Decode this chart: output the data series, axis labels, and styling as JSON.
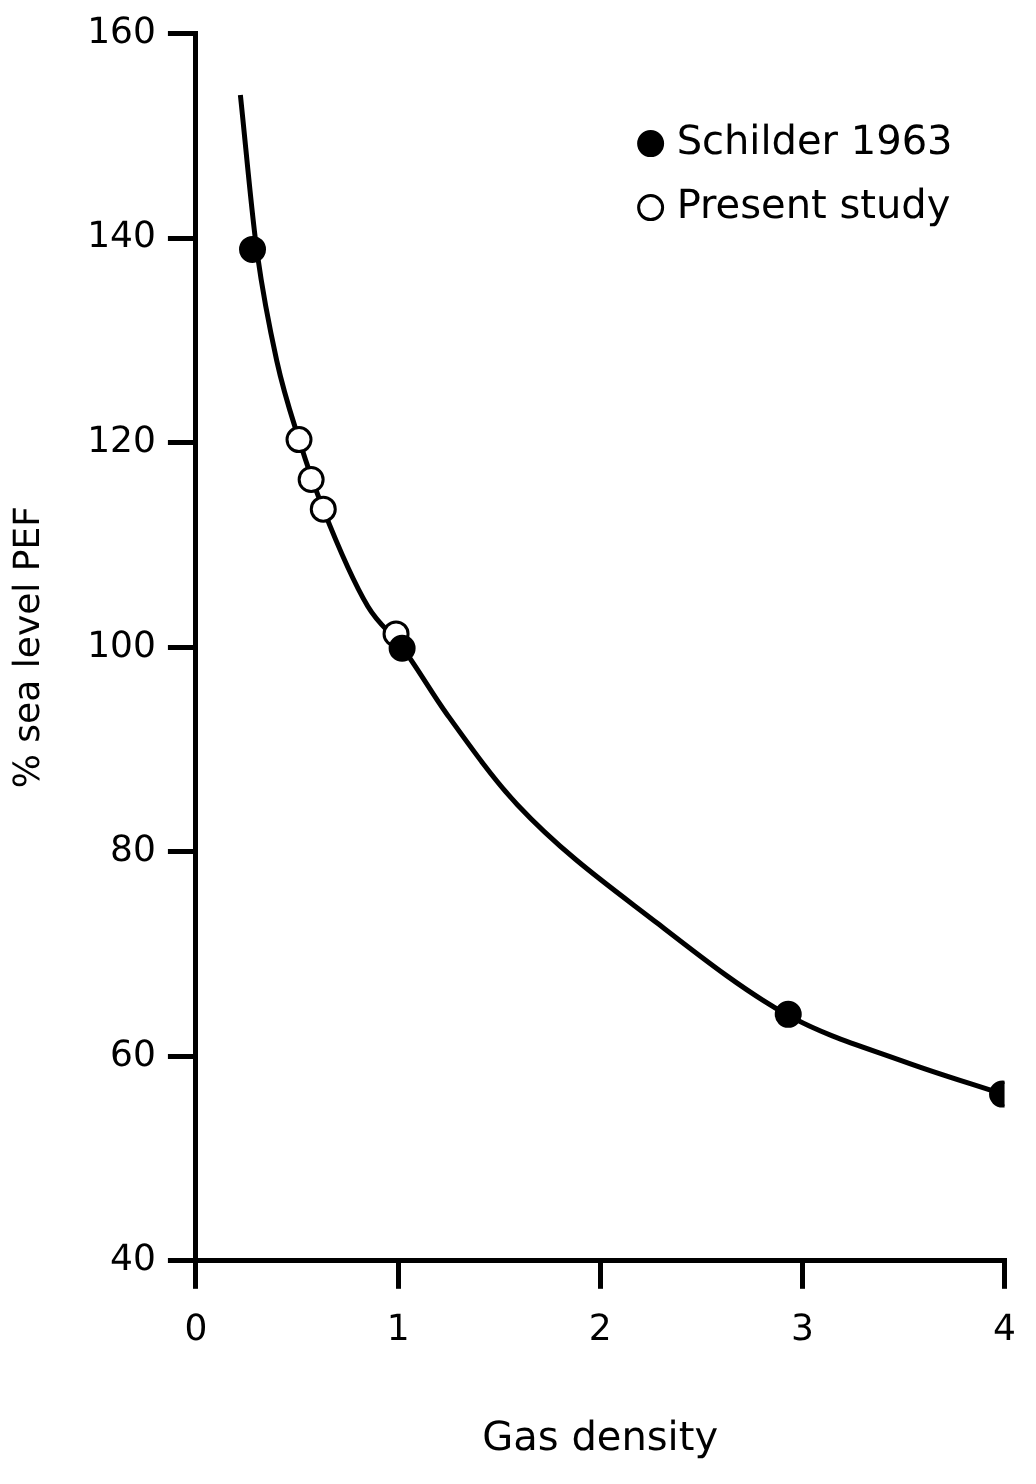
{
  "chart_data": {
    "type": "scatter",
    "xlabel": "Gas density",
    "ylabel": "% sea level PEF",
    "xlim": [
      0,
      4
    ],
    "xticks": [
      0,
      1,
      2,
      3,
      4
    ],
    "ylim": [
      40,
      160
    ],
    "yticks": [
      40,
      60,
      80,
      100,
      120,
      140,
      160
    ],
    "grid": false,
    "legend": "top right",
    "marker": "circle",
    "series": [
      {
        "type": "line",
        "marker": "none",
        "color": "#000000",
        "x": [
          0.22,
          0.3,
          0.4,
          0.51,
          0.63,
          0.85,
          1.02,
          1.24,
          1.59,
          2.29,
          2.93,
          3.5,
          3.99
        ],
        "values": [
          154,
          139,
          128,
          120.3,
          113.5,
          104,
          100,
          93.5,
          84.6,
          72.9,
          64,
          59.5,
          56.3
        ]
      },
      {
        "name": "Schilder 1963",
        "color": "#000000",
        "x": [
          0.28,
          1.02,
          2.93,
          3.99
        ],
        "values": [
          138.9,
          99.9,
          64.1,
          56.3
        ]
      },
      {
        "name": "Present study",
        "color": "#ffffff",
        "x": [
          0.51,
          0.57,
          0.63,
          0.99
        ],
        "values": [
          120.3,
          116.4,
          113.5,
          101.3
        ]
      }
    ]
  }
}
